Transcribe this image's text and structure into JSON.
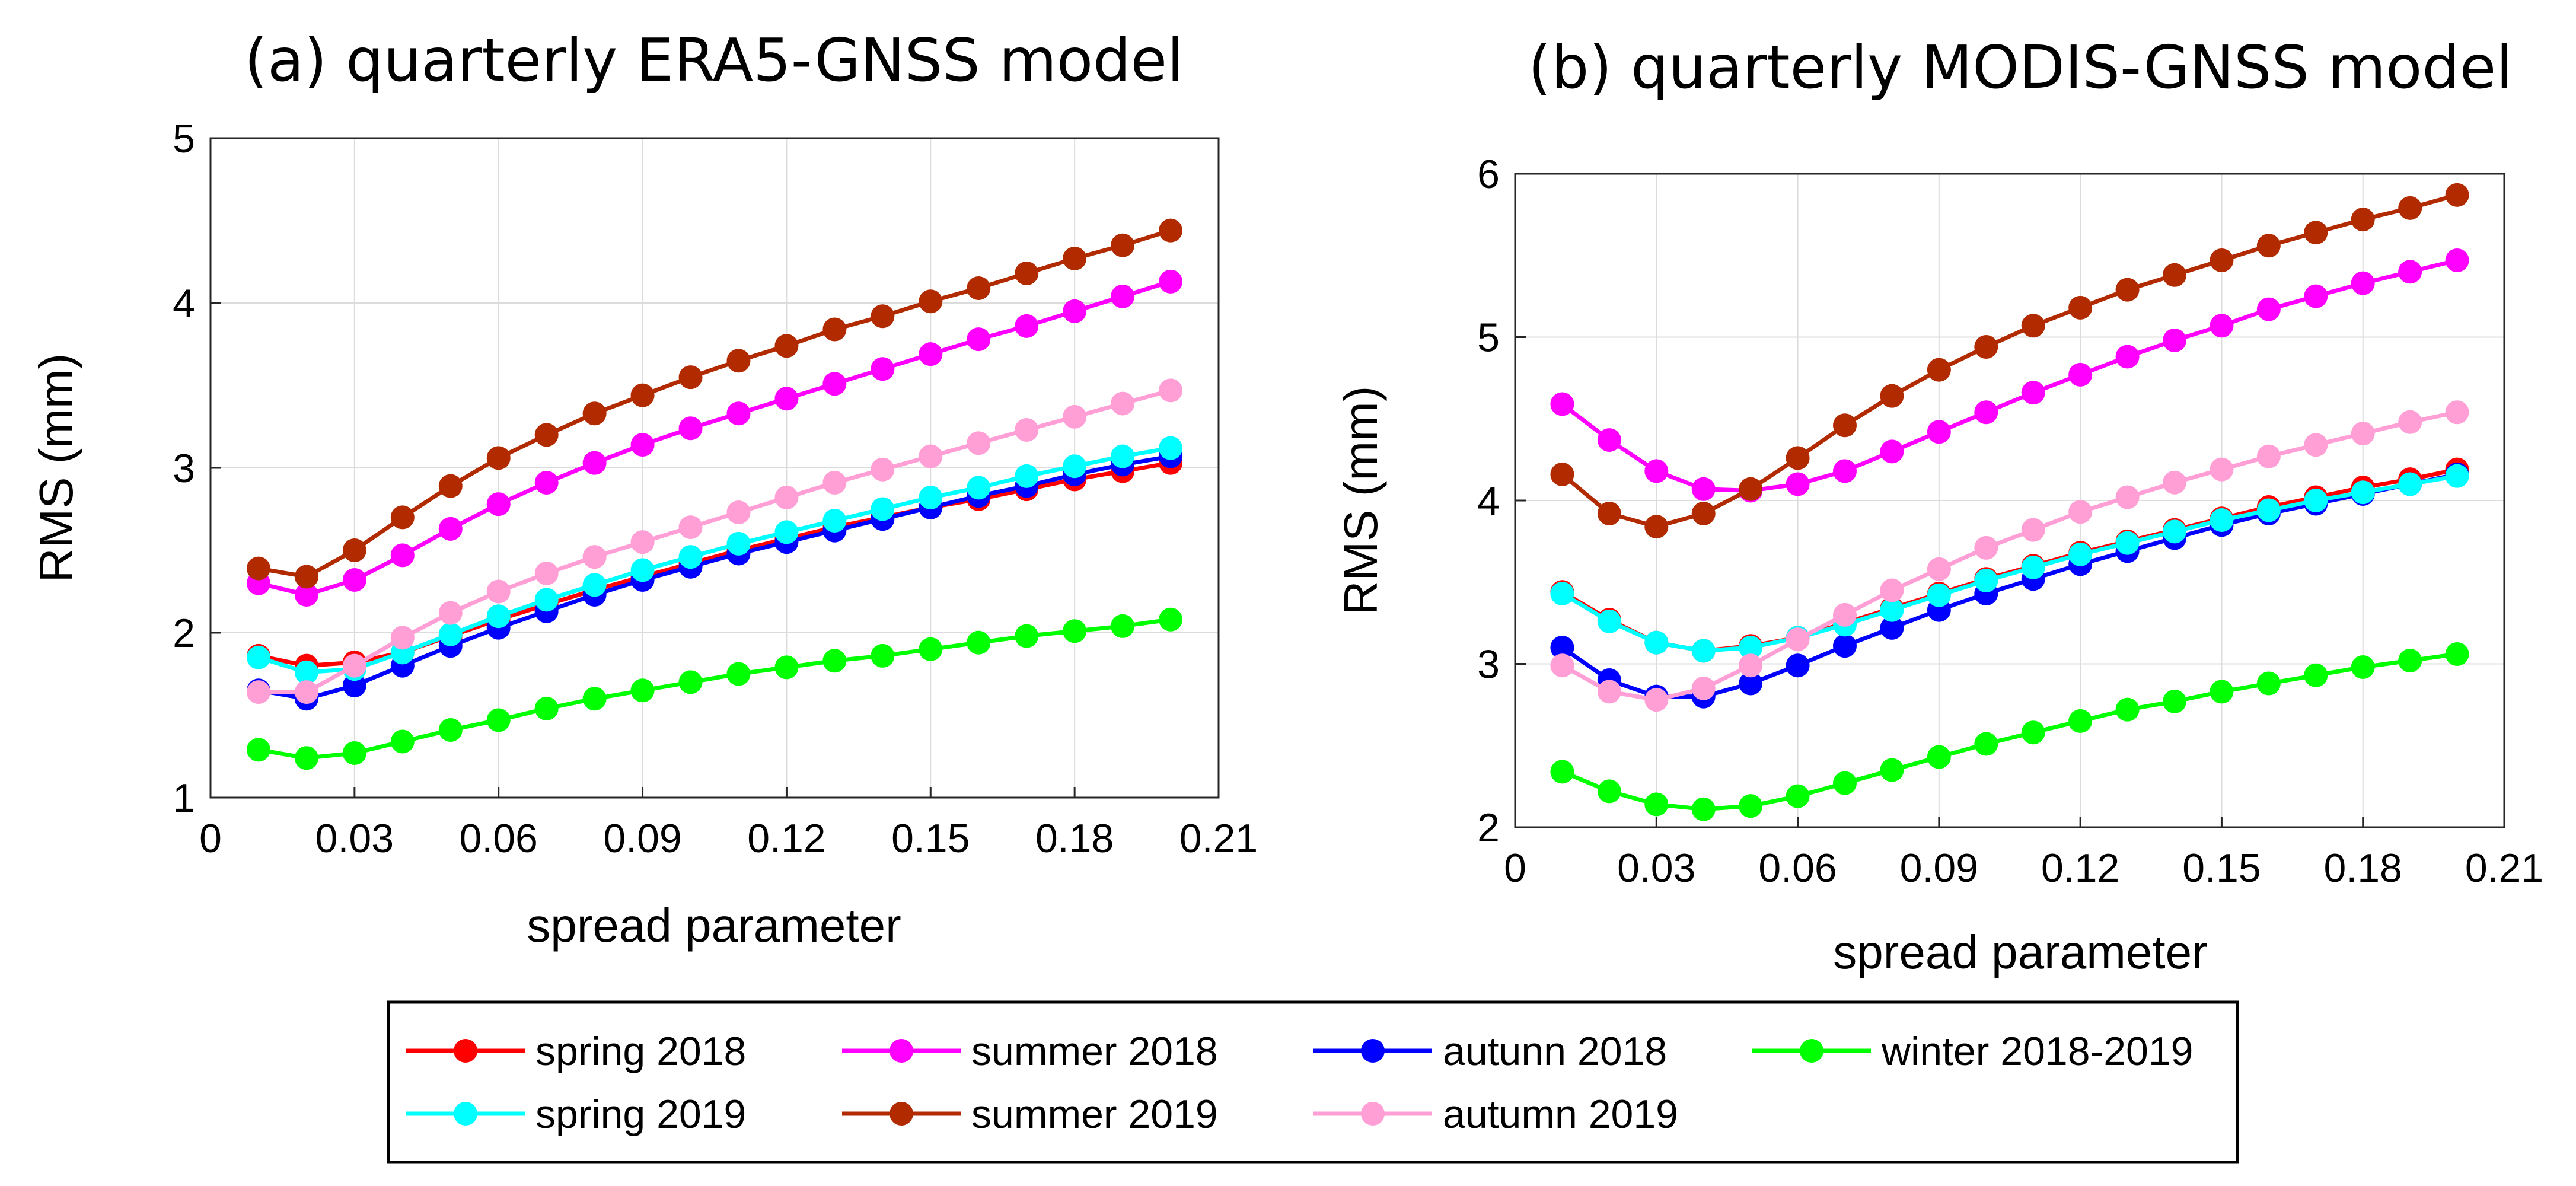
{
  "series_styles": [
    {
      "name": "spring 2018",
      "color": "#ff0000"
    },
    {
      "name": "summer 2018",
      "color": "#ff00ff"
    },
    {
      "name": "autunn 2018",
      "color": "#0000ff"
    },
    {
      "name": "winter 2018-2019",
      "color": "#00ff00"
    },
    {
      "name": "spring 2019",
      "color": "#00ffff"
    },
    {
      "name": "summer 2019",
      "color": "#b22a00"
    },
    {
      "name": "autumn 2019",
      "color": "#ff9fd5"
    }
  ],
  "legend": {
    "rows": [
      [
        "spring 2018",
        "summer 2018",
        "autunn 2018",
        "winter 2018-2019"
      ],
      [
        "spring 2019",
        "summer 2019",
        "autumn 2019"
      ]
    ]
  },
  "chart_data": [
    {
      "type": "line",
      "title": "(a) quarterly ERA5-GNSS model",
      "xlabel": "spread parameter",
      "ylabel": "RMS (mm)",
      "xlim": [
        0,
        0.21
      ],
      "ylim": [
        1,
        5
      ],
      "xticks": [
        0,
        0.03,
        0.06,
        0.09,
        0.12,
        0.15,
        0.18,
        0.21
      ],
      "xtick_labels": [
        "0",
        "0.03",
        "0.06",
        "0.09",
        "0.12",
        "0.15",
        "0.18",
        "0.21"
      ],
      "yticks": [
        1,
        2,
        3,
        4,
        5
      ],
      "ytick_labels": [
        "1",
        "2",
        "3",
        "4",
        "5"
      ],
      "grid": true,
      "x": [
        0.01,
        0.02,
        0.03,
        0.04,
        0.05,
        0.06,
        0.07,
        0.08,
        0.09,
        0.1,
        0.11,
        0.12,
        0.13,
        0.14,
        0.15,
        0.16,
        0.17,
        0.18,
        0.19,
        0.2
      ],
      "series": [
        {
          "name": "spring 2018",
          "values": [
            1.86,
            1.8,
            1.82,
            1.88,
            1.98,
            2.08,
            2.17,
            2.26,
            2.34,
            2.42,
            2.5,
            2.57,
            2.64,
            2.7,
            2.76,
            2.81,
            2.87,
            2.93,
            2.98,
            3.03
          ]
        },
        {
          "name": "summer 2018",
          "values": [
            2.3,
            2.23,
            2.32,
            2.47,
            2.63,
            2.78,
            2.91,
            3.03,
            3.14,
            3.24,
            3.33,
            3.42,
            3.51,
            3.6,
            3.69,
            3.78,
            3.86,
            3.95,
            4.04,
            4.13
          ]
        },
        {
          "name": "autunn 2018",
          "values": [
            1.65,
            1.6,
            1.68,
            1.8,
            1.92,
            2.03,
            2.13,
            2.23,
            2.32,
            2.4,
            2.48,
            2.55,
            2.62,
            2.69,
            2.76,
            2.83,
            2.89,
            2.96,
            3.02,
            3.07
          ]
        },
        {
          "name": "winter 2018-2019",
          "values": [
            1.29,
            1.24,
            1.27,
            1.34,
            1.41,
            1.47,
            1.54,
            1.6,
            1.65,
            1.7,
            1.75,
            1.79,
            1.83,
            1.86,
            1.9,
            1.94,
            1.98,
            2.01,
            2.04,
            2.08
          ]
        },
        {
          "name": "spring 2019",
          "values": [
            1.85,
            1.76,
            1.78,
            1.88,
            1.99,
            2.1,
            2.2,
            2.29,
            2.38,
            2.46,
            2.54,
            2.61,
            2.68,
            2.75,
            2.82,
            2.88,
            2.95,
            3.01,
            3.07,
            3.12
          ]
        },
        {
          "name": "summer 2019",
          "values": [
            2.39,
            2.34,
            2.5,
            2.7,
            2.89,
            3.06,
            3.2,
            3.33,
            3.44,
            3.55,
            3.65,
            3.74,
            3.84,
            3.92,
            4.01,
            4.09,
            4.18,
            4.27,
            4.35,
            4.44
          ]
        },
        {
          "name": "autumn 2019",
          "values": [
            1.64,
            1.64,
            1.8,
            1.97,
            2.12,
            2.25,
            2.36,
            2.46,
            2.55,
            2.64,
            2.73,
            2.82,
            2.91,
            2.99,
            3.07,
            3.15,
            3.23,
            3.31,
            3.39,
            3.47
          ]
        }
      ]
    },
    {
      "type": "line",
      "title": "(b) quarterly MODIS-GNSS model",
      "xlabel": "spread parameter",
      "ylabel": "RMS (mm)",
      "xlim": [
        0,
        0.21
      ],
      "ylim": [
        2,
        6
      ],
      "xticks": [
        0,
        0.03,
        0.06,
        0.09,
        0.12,
        0.15,
        0.18,
        0.21
      ],
      "xtick_labels": [
        "0",
        "0.03",
        "0.06",
        "0.09",
        "0.12",
        "0.15",
        "0.18",
        "0.21"
      ],
      "yticks": [
        2,
        3,
        4,
        5,
        6
      ],
      "ytick_labels": [
        "2",
        "3",
        "4",
        "5",
        "6"
      ],
      "grid": true,
      "x": [
        0.01,
        0.02,
        0.03,
        0.04,
        0.05,
        0.06,
        0.07,
        0.08,
        0.09,
        0.1,
        0.11,
        0.12,
        0.13,
        0.14,
        0.15,
        0.16,
        0.17,
        0.18,
        0.19,
        0.2
      ],
      "series": [
        {
          "name": "spring 2018",
          "values": [
            3.44,
            3.27,
            3.13,
            3.08,
            3.11,
            3.16,
            3.25,
            3.34,
            3.43,
            3.52,
            3.6,
            3.68,
            3.75,
            3.82,
            3.89,
            3.96,
            4.02,
            4.08,
            4.13,
            4.19
          ]
        },
        {
          "name": "summer 2018",
          "values": [
            4.59,
            4.37,
            4.18,
            4.07,
            4.06,
            4.1,
            4.18,
            4.3,
            4.42,
            4.54,
            4.66,
            4.77,
            4.88,
            4.98,
            5.07,
            5.17,
            5.25,
            5.33,
            5.4,
            5.47
          ]
        },
        {
          "name": "autunn 2018",
          "values": [
            3.1,
            2.9,
            2.8,
            2.8,
            2.88,
            2.99,
            3.11,
            3.22,
            3.33,
            3.43,
            3.52,
            3.61,
            3.69,
            3.77,
            3.85,
            3.92,
            3.98,
            4.04,
            4.1,
            4.16
          ]
        },
        {
          "name": "winter 2018-2019",
          "values": [
            2.34,
            2.22,
            2.14,
            2.11,
            2.13,
            2.19,
            2.27,
            2.35,
            2.43,
            2.51,
            2.58,
            2.65,
            2.72,
            2.77,
            2.83,
            2.88,
            2.93,
            2.98,
            3.02,
            3.06
          ]
        },
        {
          "name": "spring 2019",
          "values": [
            3.43,
            3.26,
            3.13,
            3.08,
            3.1,
            3.16,
            3.24,
            3.33,
            3.42,
            3.51,
            3.59,
            3.67,
            3.74,
            3.81,
            3.88,
            3.94,
            4.0,
            4.05,
            4.1,
            4.15
          ]
        },
        {
          "name": "summer 2019",
          "values": [
            4.16,
            3.92,
            3.84,
            3.92,
            4.07,
            4.26,
            4.46,
            4.64,
            4.8,
            4.94,
            5.07,
            5.18,
            5.29,
            5.38,
            5.47,
            5.56,
            5.64,
            5.72,
            5.79,
            5.87
          ]
        },
        {
          "name": "autumn 2019",
          "values": [
            2.99,
            2.83,
            2.78,
            2.85,
            2.99,
            3.15,
            3.3,
            3.45,
            3.58,
            3.71,
            3.82,
            3.93,
            4.02,
            4.11,
            4.19,
            4.27,
            4.34,
            4.41,
            4.48,
            4.54
          ]
        }
      ]
    }
  ]
}
